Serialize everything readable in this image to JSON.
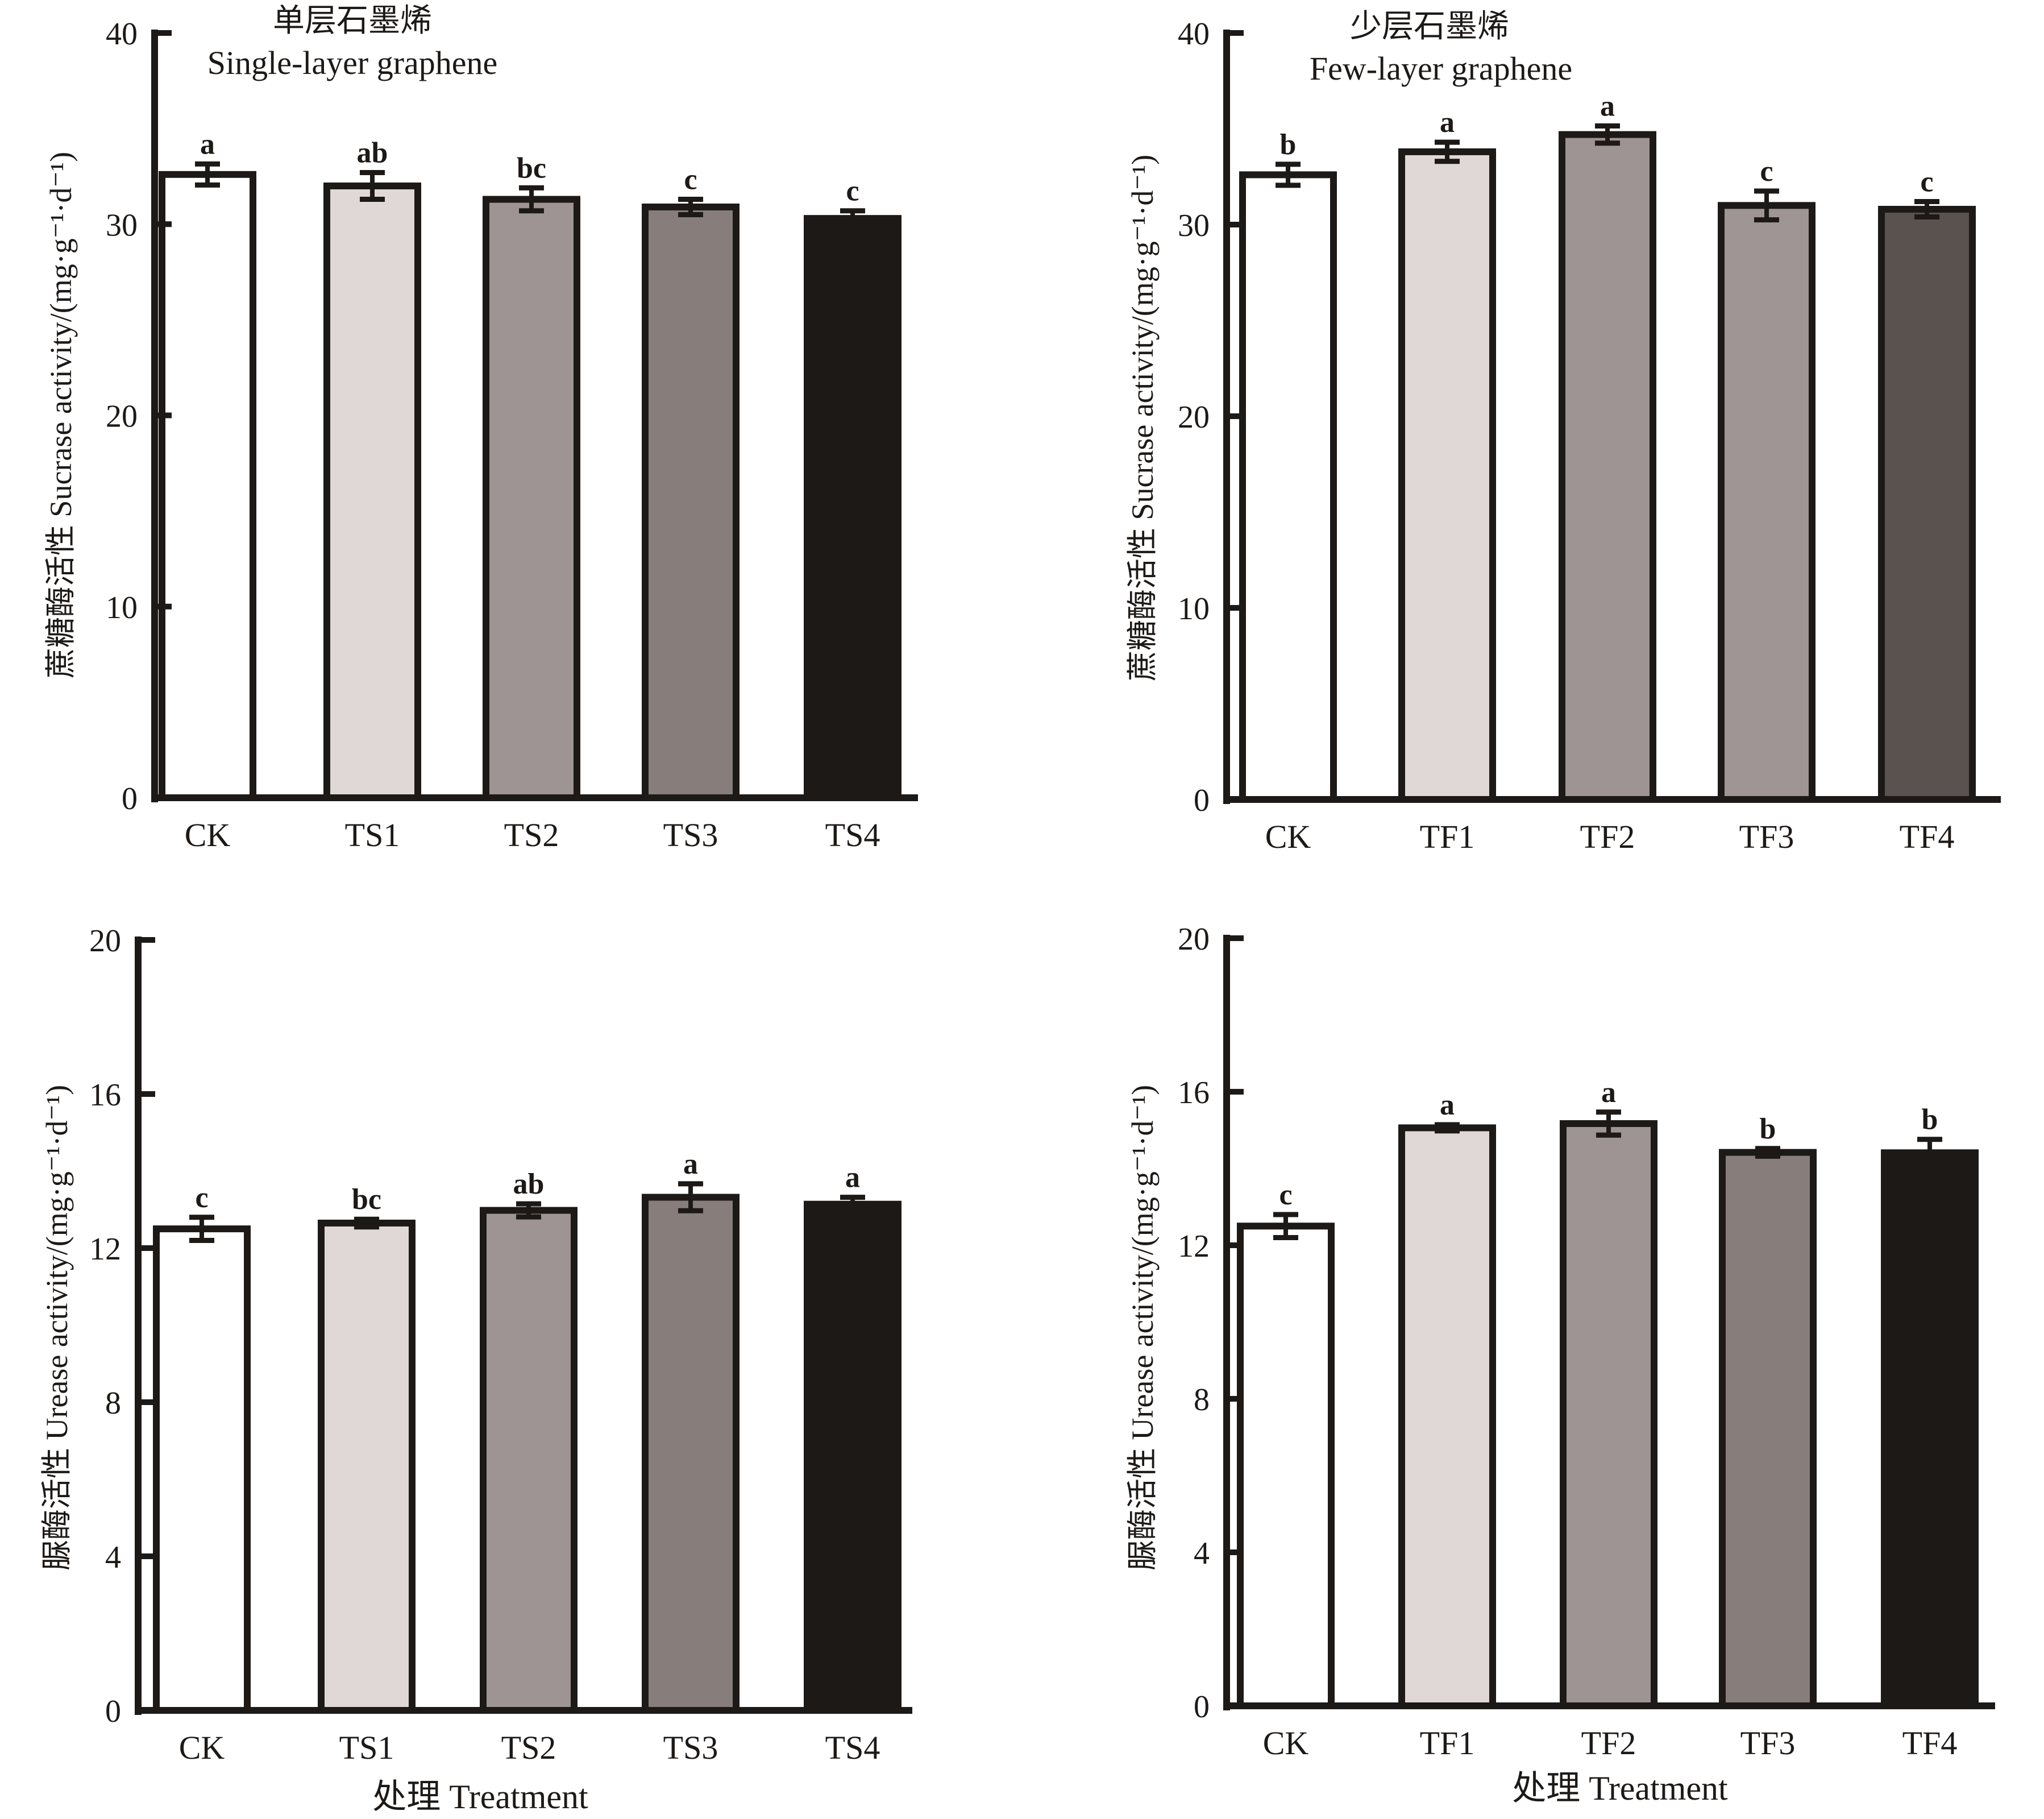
{
  "chart_data": [
    {
      "type": "bar",
      "panel": "top-left",
      "title_cn": "单层石墨烯",
      "title": "Single-layer graphene",
      "xlabel": "",
      "ylabel": "蔗糖酶活性 Sucrase activity/(mg·g⁻¹·d⁻¹)",
      "ylim": [
        0,
        40
      ],
      "yticks": [
        0,
        10,
        20,
        30,
        40
      ],
      "categories": [
        "CK",
        "TS1",
        "TS2",
        "TS3",
        "TS4"
      ],
      "values": [
        32.6,
        32.0,
        31.3,
        30.9,
        30.3
      ],
      "errors": [
        0.55,
        0.7,
        0.6,
        0.4,
        0.4
      ],
      "significance": [
        "a",
        "ab",
        "bc",
        "c",
        "c"
      ],
      "colors": [
        "#ffffff",
        "#dfd8d6",
        "#9e9493",
        "#877e7b",
        "#1c1917"
      ],
      "grid": false
    },
    {
      "type": "bar",
      "panel": "top-right",
      "title_cn": "少层石墨烯",
      "title": "Few-layer graphene",
      "xlabel": "",
      "ylabel": "蔗糖酶活性 Sucrase activity/(mg·g⁻¹·d⁻¹)",
      "ylim": [
        0,
        40
      ],
      "yticks": [
        0,
        10,
        20,
        30,
        40
      ],
      "categories": [
        "CK",
        "TF1",
        "TF2",
        "TF3",
        "TF4"
      ],
      "values": [
        32.6,
        33.8,
        34.7,
        31.0,
        30.8
      ],
      "errors": [
        0.55,
        0.5,
        0.45,
        0.75,
        0.4
      ],
      "significance": [
        "b",
        "a",
        "a",
        "c",
        "c"
      ],
      "colors": [
        "#ffffff",
        "#dfd8d6",
        "#9e9493",
        "#9e9594",
        "#5a524e"
      ],
      "grid": false
    },
    {
      "type": "bar",
      "panel": "bottom-left",
      "title_cn": "",
      "title": "",
      "xlabel": "处理 Treatment",
      "ylabel": "脲酶活性 Urease activity/(mg·g⁻¹·d⁻¹)",
      "ylim": [
        0,
        20
      ],
      "yticks": [
        0,
        4,
        8,
        12,
        16,
        20
      ],
      "categories": [
        "CK",
        "TS1",
        "TS2",
        "TS3",
        "TS4"
      ],
      "values": [
        12.5,
        12.65,
        12.98,
        13.32,
        13.14
      ],
      "errors": [
        0.3,
        0.1,
        0.17,
        0.35,
        0.18
      ],
      "significance": [
        "c",
        "bc",
        "ab",
        "a",
        "a"
      ],
      "colors": [
        "#ffffff",
        "#dfd8d6",
        "#9e9493",
        "#877e7b",
        "#1c1917"
      ],
      "grid": false
    },
    {
      "type": "bar",
      "panel": "bottom-right",
      "title_cn": "",
      "title": "",
      "xlabel": "处理 Treatment",
      "ylabel": "脲酶活性 Urease activity/(mg·g⁻¹·d⁻¹)",
      "ylim": [
        0,
        20
      ],
      "yticks": [
        0,
        4,
        8,
        12,
        16,
        20
      ],
      "categories": [
        "CK",
        "TF1",
        "TF2",
        "TF3",
        "TF4"
      ],
      "values": [
        12.5,
        15.06,
        15.17,
        14.42,
        14.41
      ],
      "errors": [
        0.3,
        0.08,
        0.3,
        0.1,
        0.35
      ],
      "significance": [
        "c",
        "a",
        "a",
        "b",
        "b"
      ],
      "colors": [
        "#ffffff",
        "#dfd8d6",
        "#9e9493",
        "#877e7b",
        "#1c1917"
      ],
      "grid": false
    }
  ]
}
